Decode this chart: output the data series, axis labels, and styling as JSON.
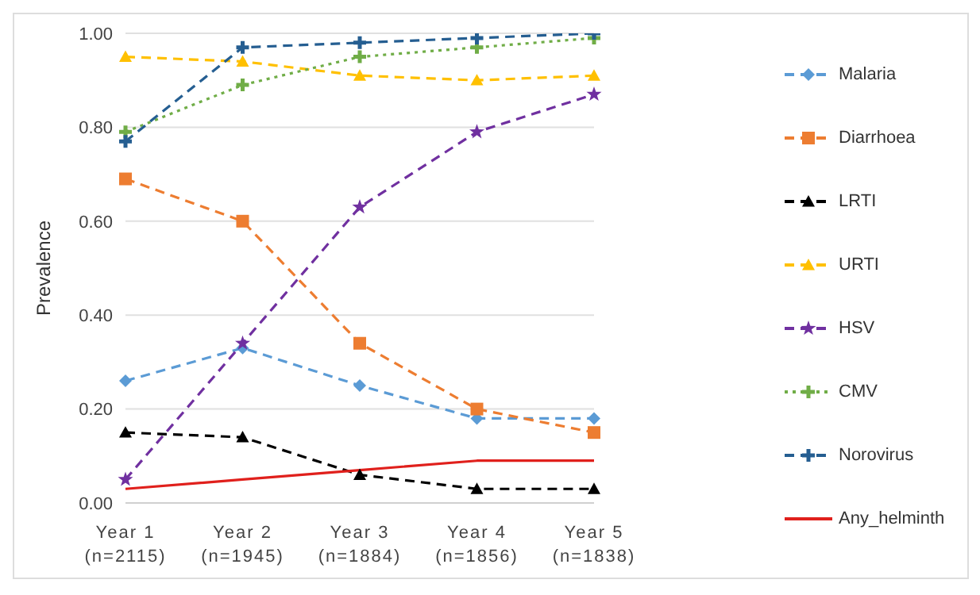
{
  "chart_data": {
    "type": "line",
    "ylabel": "Prevalence",
    "categories": [
      "Year 1\n(n=2115)",
      "Year 2\n(n=1945)",
      "Year 3\n(n=1884)",
      "Year 4\n(n=1856)",
      "Year 5\n(n=1838)"
    ],
    "ylim": [
      0,
      1
    ],
    "yticks": [
      {
        "value": 0,
        "label": "0.00"
      },
      {
        "value": 0.2,
        "label": "0.20"
      },
      {
        "value": 0.4,
        "label": "0.40"
      },
      {
        "value": 0.6,
        "label": "0.60"
      },
      {
        "value": 0.8,
        "label": "0.80"
      },
      {
        "value": 1,
        "label": "1.00"
      }
    ],
    "grid": "y",
    "legend": "right",
    "series": [
      {
        "name": "Malaria",
        "color": "#5b9bd5",
        "marker": "diamond",
        "line_style": "dashed",
        "values": [
          0.26,
          0.33,
          0.25,
          0.18,
          0.18
        ]
      },
      {
        "name": "Diarrhoea",
        "color": "#ed7d31",
        "marker": "square",
        "line_style": "dashed",
        "values": [
          0.69,
          0.6,
          0.34,
          0.2,
          0.15
        ]
      },
      {
        "name": "LRTI",
        "color": "#000000",
        "marker": "triangle",
        "line_style": "dashed",
        "values": [
          0.15,
          0.14,
          0.06,
          0.03,
          0.03
        ]
      },
      {
        "name": "URTI",
        "color": "#ffc000",
        "marker": "triangle",
        "line_style": "dashed",
        "values": [
          0.95,
          0.94,
          0.91,
          0.9,
          0.91
        ]
      },
      {
        "name": "HSV",
        "color": "#7030a0",
        "marker": "star",
        "line_style": "dashed",
        "values": [
          0.05,
          0.34,
          0.63,
          0.79,
          0.87
        ]
      },
      {
        "name": "CMV",
        "color": "#70ad47",
        "marker": "cross",
        "line_style": "dotted",
        "values": [
          0.79,
          0.89,
          0.95,
          0.97,
          0.99
        ]
      },
      {
        "name": "Norovirus",
        "color": "#255e91",
        "marker": "cross",
        "line_style": "dashed",
        "values": [
          0.77,
          0.97,
          0.98,
          0.99,
          1.0
        ]
      },
      {
        "name": "Any_helminth",
        "color": "#e0201c",
        "marker": "none",
        "line_style": "solid",
        "values": [
          0.03,
          0.05,
          0.07,
          0.09,
          0.09
        ]
      }
    ]
  }
}
